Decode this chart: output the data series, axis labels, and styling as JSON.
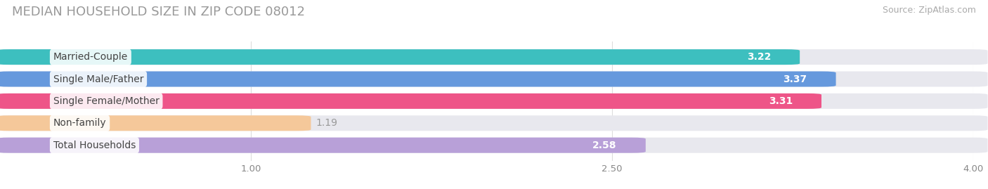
{
  "title": "MEDIAN HOUSEHOLD SIZE IN ZIP CODE 08012",
  "source": "Source: ZipAtlas.com",
  "categories": [
    "Married-Couple",
    "Single Male/Father",
    "Single Female/Mother",
    "Non-family",
    "Total Households"
  ],
  "values": [
    3.22,
    3.37,
    3.31,
    1.19,
    2.58
  ],
  "bar_colors": [
    "#3dbfbf",
    "#6699dd",
    "#ee5588",
    "#f5c89a",
    "#b8a0d8"
  ],
  "xlim_data": [
    0,
    4.0
  ],
  "xaxis_min": 1.0,
  "xaxis_max": 4.0,
  "xticks": [
    1.0,
    2.5,
    4.0
  ],
  "xtick_labels": [
    "1.00",
    "2.50",
    "4.00"
  ],
  "background_color": "#ffffff",
  "bar_bg_color": "#e8e8ee",
  "title_fontsize": 13,
  "source_fontsize": 9,
  "label_fontsize": 10,
  "value_fontsize": 10,
  "value_label_color_inside": "white",
  "value_label_color_outside": "#999999"
}
